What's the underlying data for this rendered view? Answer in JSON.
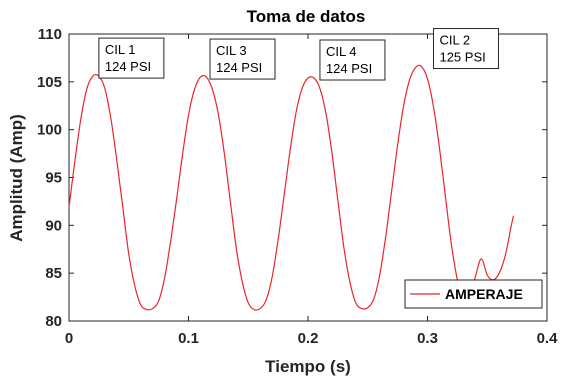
{
  "chart_data": {
    "type": "line",
    "title": "Toma de datos",
    "xlabel": "Tiempo (s)",
    "ylabel": "Amplitud (Amp)",
    "xlim": [
      0,
      0.4
    ],
    "ylim": [
      80,
      110
    ],
    "xticks": [
      "0",
      "0.1",
      "0.2",
      "0.3",
      "0.4"
    ],
    "yticks": [
      "80",
      "85",
      "90",
      "95",
      "100",
      "105",
      "110"
    ],
    "grid": false,
    "legend_position": "bottom-right",
    "series": [
      {
        "name": "AMPERAJE",
        "color": "#e8262a",
        "x": [
          0,
          0.005,
          0.01,
          0.015,
          0.02,
          0.025,
          0.03,
          0.035,
          0.04,
          0.045,
          0.05,
          0.055,
          0.06,
          0.065,
          0.07,
          0.075,
          0.08,
          0.085,
          0.09,
          0.095,
          0.1,
          0.105,
          0.11,
          0.115,
          0.12,
          0.125,
          0.13,
          0.135,
          0.14,
          0.145,
          0.15,
          0.155,
          0.16,
          0.165,
          0.17,
          0.175,
          0.18,
          0.185,
          0.19,
          0.195,
          0.2,
          0.205,
          0.21,
          0.215,
          0.22,
          0.225,
          0.23,
          0.235,
          0.24,
          0.245,
          0.25,
          0.255,
          0.26,
          0.265,
          0.27,
          0.275,
          0.28,
          0.285,
          0.29,
          0.295,
          0.3,
          0.305,
          0.31,
          0.315,
          0.32,
          0.325,
          0.33,
          0.335,
          0.34,
          0.345,
          0.35,
          0.355,
          0.36,
          0.365,
          0.37,
          0.372
        ],
        "y": [
          91.9,
          96.8,
          101.2,
          104.3,
          105.6,
          105.6,
          104.3,
          101.2,
          96.8,
          91.9,
          87.0,
          83.7,
          81.7,
          81.2,
          81.3,
          82.1,
          84.5,
          88.3,
          92.7,
          97.4,
          101.5,
          104.2,
          105.5,
          105.5,
          104.2,
          101.6,
          97.5,
          92.5,
          87.6,
          84.1,
          81.9,
          81.2,
          81.3,
          82.2,
          84.6,
          88.5,
          93.1,
          97.8,
          101.8,
          104.3,
          105.4,
          105.4,
          104.3,
          101.7,
          97.6,
          92.6,
          87.7,
          84.1,
          81.9,
          81.3,
          81.4,
          82.3,
          84.8,
          88.8,
          93.6,
          98.4,
          102.5,
          105.2,
          106.5,
          106.6,
          105.3,
          102.4,
          98.1,
          93.0,
          88.0,
          84.3,
          82.1,
          82.5,
          84.6,
          86.5,
          84.8,
          84.3,
          85.0,
          86.8,
          89.9,
          91.0
        ]
      }
    ],
    "annotations": [
      {
        "lines": [
          "CIL 1",
          "124 PSI"
        ],
        "x": 0.025,
        "y": 105.6
      },
      {
        "lines": [
          "CIL 3",
          "124 PSI"
        ],
        "x": 0.118,
        "y": 105.5
      },
      {
        "lines": [
          "CIL 4",
          "124 PSI"
        ],
        "x": 0.21,
        "y": 105.4
      },
      {
        "lines": [
          "CIL 2",
          "125 PSI"
        ],
        "x": 0.305,
        "y": 106.6
      }
    ]
  }
}
